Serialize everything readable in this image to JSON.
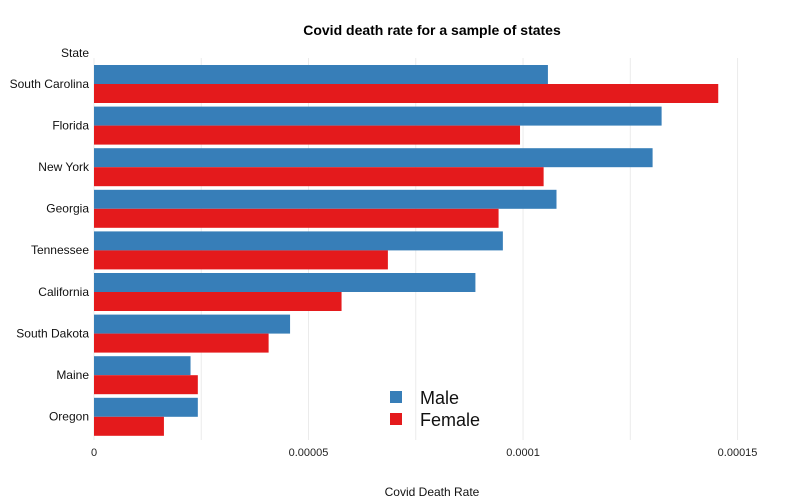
{
  "chart_data": {
    "type": "bar",
    "orientation": "horizontal",
    "title": "Covid death rate for a sample of states",
    "xlabel": "Covid Death Rate",
    "ylabel": "State",
    "categories": [
      "South Carolina",
      "Florida",
      "New York",
      "Georgia",
      "Tennessee",
      "California",
      "South Dakota",
      "Maine",
      "Oregon"
    ],
    "series": [
      {
        "name": "Male",
        "color": "#377eb8",
        "values": [
          0.0001058,
          0.0001323,
          0.0001302,
          0.0001078,
          9.53e-05,
          8.89e-05,
          4.57e-05,
          2.25e-05,
          2.42e-05
        ]
      },
      {
        "name": "Female",
        "color": "#e41a1c",
        "values": [
          0.0001455,
          9.93e-05,
          0.0001048,
          9.43e-05,
          6.85e-05,
          5.77e-05,
          4.07e-05,
          2.42e-05,
          1.63e-05
        ]
      }
    ],
    "xlim": [
      0,
      0.000155
    ],
    "xticks": [
      0,
      5e-05,
      0.0001,
      0.00015
    ],
    "xtick_labels": [
      "0",
      "0.00005",
      "0.0001",
      "0.00015"
    ],
    "grid": true,
    "legend_position": "bottom-center"
  }
}
